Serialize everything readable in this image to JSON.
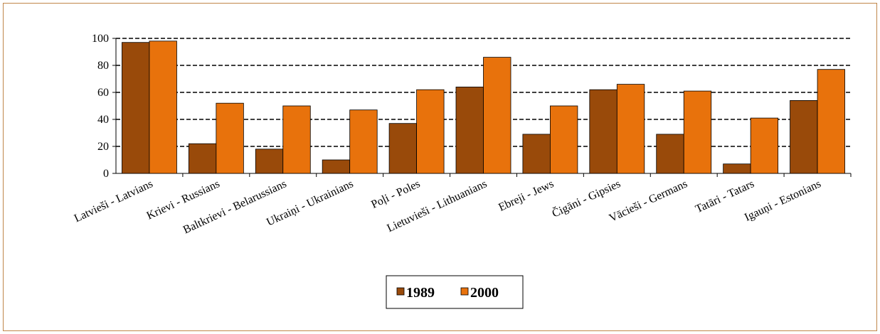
{
  "chart_data": {
    "type": "bar",
    "categories": [
      "Latvieši - Latvians",
      "Krievi - Russians",
      "Baltkrievi - Belarussians",
      "Ukraiņi - Ukrainians",
      "Poļi - Poles",
      "Lietuvieši - Lithuanians",
      "Ebreji - Jews",
      "Čigāni - Gipsies",
      "Vācieši - Germans",
      "Tatāri - Tatars",
      "Igauņi - Estonians"
    ],
    "series": [
      {
        "name": "1989",
        "color": "#994a0a",
        "values": [
          97,
          22,
          18,
          10,
          37,
          64,
          29,
          62,
          29,
          7,
          54
        ]
      },
      {
        "name": "2000",
        "color": "#e8720c",
        "values": [
          98,
          52,
          50,
          47,
          62,
          86,
          50,
          66,
          61,
          41,
          77
        ]
      }
    ],
    "ylim": [
      0,
      100
    ],
    "yticks": [
      0,
      20,
      40,
      60,
      80,
      100
    ],
    "grid": true,
    "legend": "bottom"
  }
}
